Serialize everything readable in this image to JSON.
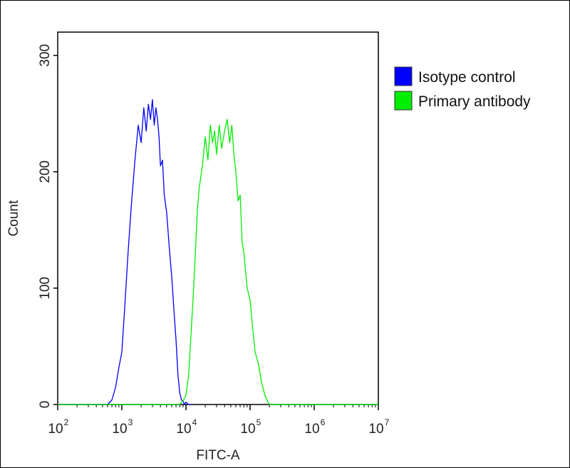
{
  "chart_data": {
    "type": "line",
    "xlabel": "FITC-A",
    "ylabel": "Count",
    "xscale": "log",
    "xlim": [
      100,
      10000000
    ],
    "ylim": [
      0,
      320
    ],
    "x_ticks": [
      {
        "base": "10",
        "exp": "2",
        "value": 100
      },
      {
        "base": "10",
        "exp": "3",
        "value": 1000
      },
      {
        "base": "10",
        "exp": "4",
        "value": 10000
      },
      {
        "base": "10",
        "exp": "5",
        "value": 100000
      },
      {
        "base": "10",
        "exp": "6",
        "value": 1000000
      },
      {
        "base": "10",
        "exp": "7",
        "value": 10000000
      }
    ],
    "y_ticks": [
      "0",
      "100",
      "200",
      "300"
    ],
    "legend_position": "right",
    "series": [
      {
        "name": "Isotype control",
        "color": "#0000ff",
        "x": [
          100,
          200,
          400,
          600,
          700,
          800,
          900,
          1000,
          1100,
          1250,
          1400,
          1600,
          1800,
          2000,
          2200,
          2400,
          2600,
          2800,
          3000,
          3200,
          3400,
          3600,
          3800,
          4000,
          4300,
          4600,
          5000,
          5500,
          6000,
          6500,
          7000,
          7500,
          8000,
          8500,
          9000,
          9500,
          10000,
          11000,
          12000
        ],
        "y": [
          0,
          0,
          0,
          0,
          4,
          15,
          32,
          45,
          80,
          130,
          170,
          210,
          240,
          225,
          255,
          235,
          258,
          245,
          262,
          240,
          255,
          245,
          230,
          205,
          210,
          180,
          165,
          135,
          110,
          80,
          55,
          25,
          10,
          4,
          3,
          0,
          2,
          0,
          0
        ]
      },
      {
        "name": "Primary antibody",
        "color": "#00ee00",
        "x": [
          100,
          2000,
          5000,
          8000,
          9000,
          10000,
          11000,
          12000,
          13000,
          14000,
          15000,
          16000,
          18000,
          20000,
          22000,
          24000,
          26000,
          28000,
          30000,
          33000,
          36000,
          40000,
          44000,
          48000,
          52000,
          56000,
          60000,
          65000,
          70000,
          75000,
          80000,
          90000,
          100000,
          110000,
          120000,
          135000,
          150000,
          170000,
          190000,
          200000,
          1000000,
          10000000
        ],
        "y": [
          0,
          0,
          0,
          0,
          3,
          8,
          25,
          60,
          95,
          130,
          165,
          185,
          205,
          230,
          210,
          240,
          225,
          235,
          215,
          240,
          220,
          235,
          245,
          225,
          240,
          215,
          200,
          175,
          180,
          140,
          130,
          100,
          90,
          65,
          45,
          35,
          20,
          8,
          2,
          0,
          0,
          0
        ]
      }
    ]
  }
}
